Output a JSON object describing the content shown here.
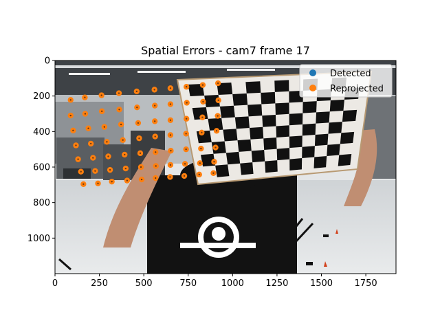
{
  "chart_data": {
    "type": "scatter",
    "title": "Spatial Errors - cam7 frame 17",
    "xlim": [
      0,
      1920
    ],
    "ylim": [
      1200,
      0
    ],
    "x_ticks": [
      0,
      250,
      500,
      750,
      1000,
      1250,
      1500,
      1750
    ],
    "y_ticks": [
      0,
      200,
      400,
      600,
      800,
      1000
    ],
    "legend_position": "top-right",
    "background_image": "camera photo: person holding checkerboard calibration target in a lab",
    "series": [
      {
        "name": "Detected",
        "color": "#1f77b4",
        "points": [
          [
            88,
            222
          ],
          [
            168,
            208
          ],
          [
            262,
            196
          ],
          [
            360,
            184
          ],
          [
            460,
            174
          ],
          [
            560,
            164
          ],
          [
            650,
            156
          ],
          [
            740,
            148
          ],
          [
            832,
            138
          ],
          [
            918,
            128
          ],
          [
            88,
            310
          ],
          [
            170,
            300
          ],
          [
            264,
            286
          ],
          [
            362,
            276
          ],
          [
            462,
            264
          ],
          [
            562,
            254
          ],
          [
            650,
            246
          ],
          [
            742,
            238
          ],
          [
            834,
            232
          ],
          [
            920,
            224
          ],
          [
            102,
            394
          ],
          [
            188,
            382
          ],
          [
            278,
            374
          ],
          [
            372,
            360
          ],
          [
            468,
            352
          ],
          [
            562,
            342
          ],
          [
            650,
            336
          ],
          [
            740,
            328
          ],
          [
            830,
            320
          ],
          [
            916,
            312
          ],
          [
            118,
            478
          ],
          [
            202,
            468
          ],
          [
            292,
            458
          ],
          [
            382,
            448
          ],
          [
            474,
            438
          ],
          [
            564,
            428
          ],
          [
            650,
            420
          ],
          [
            738,
            412
          ],
          [
            826,
            406
          ],
          [
            910,
            396
          ],
          [
            130,
            556
          ],
          [
            214,
            548
          ],
          [
            300,
            540
          ],
          [
            392,
            530
          ],
          [
            480,
            522
          ],
          [
            566,
            516
          ],
          [
            652,
            508
          ],
          [
            738,
            500
          ],
          [
            822,
            496
          ],
          [
            904,
            490
          ],
          [
            146,
            626
          ],
          [
            226,
            622
          ],
          [
            310,
            616
          ],
          [
            398,
            608
          ],
          [
            484,
            600
          ],
          [
            568,
            594
          ],
          [
            650,
            588
          ],
          [
            732,
            582
          ],
          [
            816,
            578
          ],
          [
            896,
            570
          ],
          [
            160,
            696
          ],
          [
            242,
            692
          ],
          [
            320,
            682
          ],
          [
            406,
            676
          ],
          [
            488,
            670
          ],
          [
            566,
            662
          ],
          [
            648,
            656
          ],
          [
            728,
            650
          ],
          [
            812,
            642
          ],
          [
            892,
            634
          ]
        ]
      },
      {
        "name": "Reprojected",
        "color": "#ff7f0e",
        "points": [
          [
            88,
            222
          ],
          [
            168,
            208
          ],
          [
            262,
            196
          ],
          [
            360,
            184
          ],
          [
            460,
            174
          ],
          [
            560,
            164
          ],
          [
            650,
            156
          ],
          [
            740,
            148
          ],
          [
            832,
            138
          ],
          [
            918,
            128
          ],
          [
            88,
            310
          ],
          [
            170,
            300
          ],
          [
            264,
            286
          ],
          [
            362,
            276
          ],
          [
            462,
            264
          ],
          [
            562,
            254
          ],
          [
            650,
            246
          ],
          [
            742,
            238
          ],
          [
            834,
            232
          ],
          [
            920,
            224
          ],
          [
            102,
            394
          ],
          [
            188,
            382
          ],
          [
            278,
            374
          ],
          [
            372,
            360
          ],
          [
            468,
            352
          ],
          [
            562,
            342
          ],
          [
            650,
            336
          ],
          [
            740,
            328
          ],
          [
            830,
            320
          ],
          [
            916,
            312
          ],
          [
            118,
            478
          ],
          [
            202,
            468
          ],
          [
            292,
            458
          ],
          [
            382,
            448
          ],
          [
            474,
            438
          ],
          [
            564,
            428
          ],
          [
            650,
            420
          ],
          [
            738,
            412
          ],
          [
            826,
            406
          ],
          [
            910,
            396
          ],
          [
            130,
            556
          ],
          [
            214,
            548
          ],
          [
            300,
            540
          ],
          [
            392,
            530
          ],
          [
            480,
            522
          ],
          [
            566,
            516
          ],
          [
            652,
            508
          ],
          [
            738,
            500
          ],
          [
            822,
            496
          ],
          [
            904,
            490
          ],
          [
            146,
            626
          ],
          [
            226,
            622
          ],
          [
            310,
            616
          ],
          [
            398,
            608
          ],
          [
            484,
            600
          ],
          [
            568,
            594
          ],
          [
            650,
            588
          ],
          [
            732,
            582
          ],
          [
            816,
            578
          ],
          [
            896,
            570
          ],
          [
            160,
            696
          ],
          [
            242,
            692
          ],
          [
            320,
            682
          ],
          [
            406,
            676
          ],
          [
            488,
            670
          ],
          [
            566,
            662
          ],
          [
            648,
            656
          ],
          [
            728,
            650
          ],
          [
            812,
            642
          ],
          [
            892,
            634
          ]
        ]
      }
    ]
  },
  "legend": {
    "detected_label": "Detected",
    "reprojected_label": "Reprojected"
  }
}
